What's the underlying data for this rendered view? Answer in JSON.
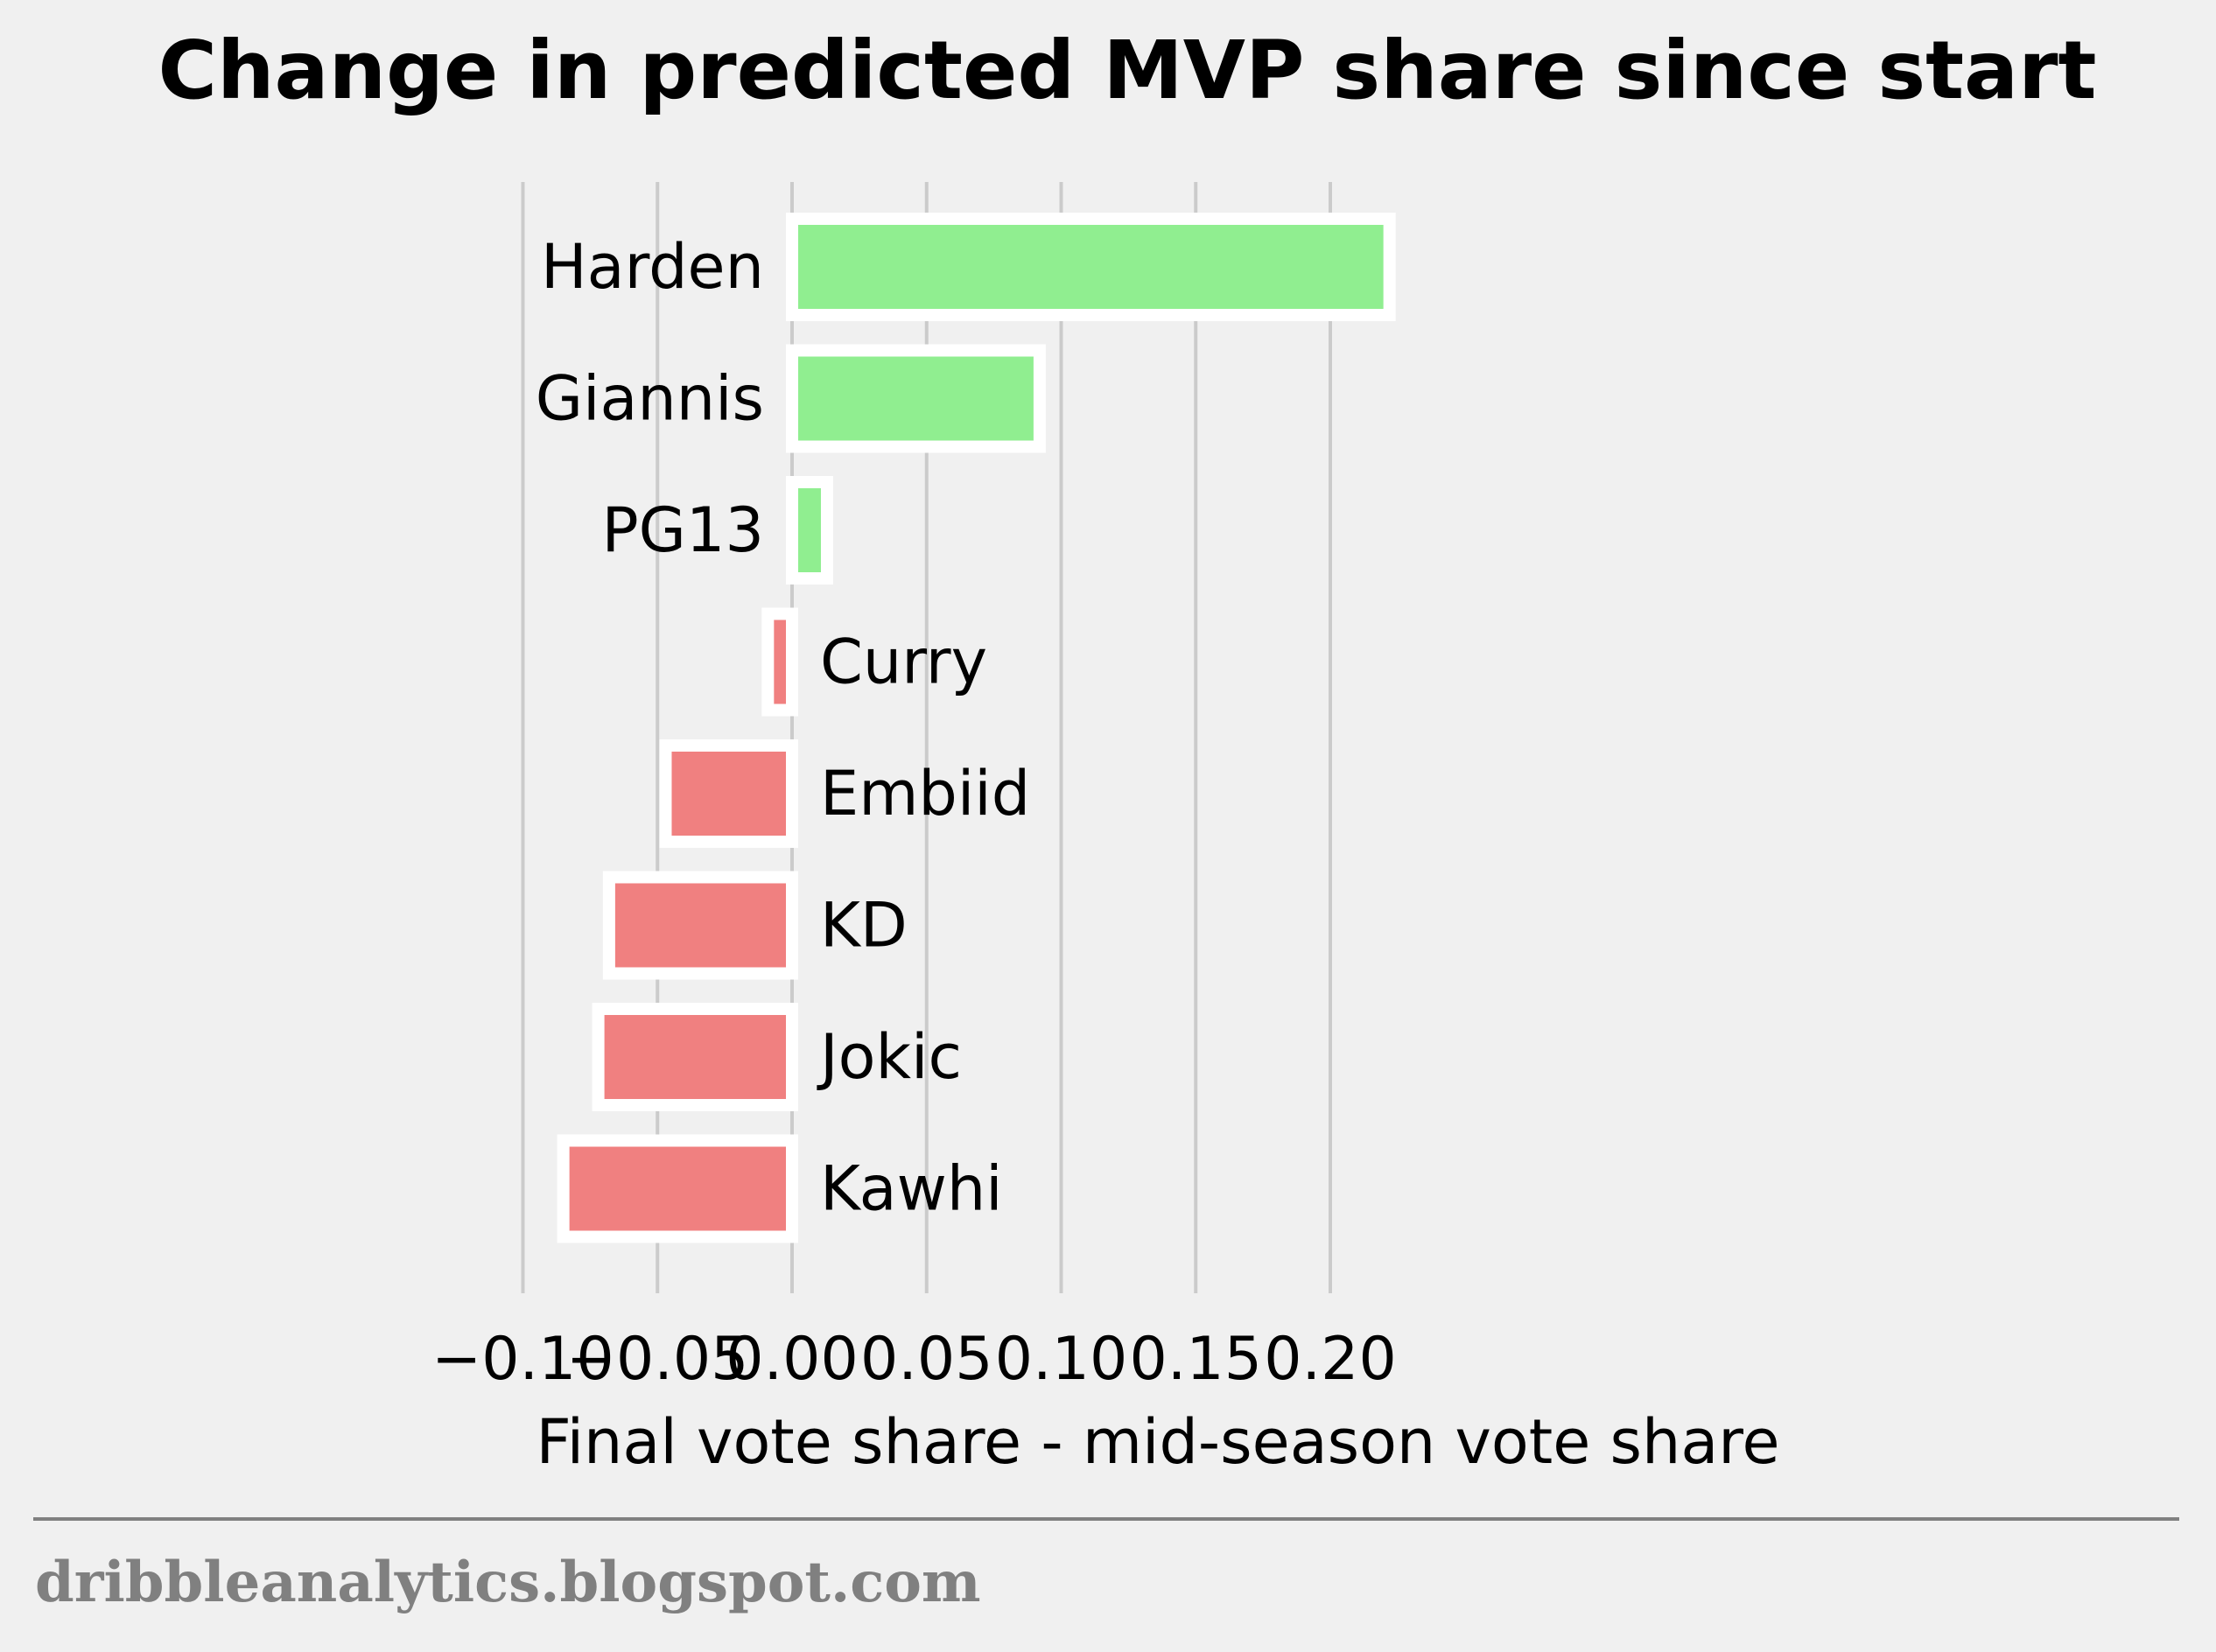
{
  "chart_data": {
    "type": "bar",
    "orientation": "horizontal",
    "title": "Change in predicted MVP share since start",
    "xlabel": "Final vote share - mid-season vote share",
    "ylabel": "",
    "categories": [
      "Harden",
      "Giannis",
      "PG13",
      "Curry",
      "Embiid",
      "KD",
      "Jokic",
      "Kawhi"
    ],
    "values": [
      0.222,
      0.092,
      0.013,
      -0.009,
      -0.047,
      -0.068,
      -0.072,
      -0.085
    ],
    "xlim": [
      -0.105,
      0.23
    ],
    "xticks": [
      -0.1,
      -0.05,
      0.0,
      0.05,
      0.1,
      0.15,
      0.2
    ],
    "xtick_labels": [
      "−0.10",
      "−0.05",
      "0.00",
      "0.05",
      "0.10",
      "0.15",
      "0.20"
    ],
    "grid": "vertical",
    "colors": {
      "positive": "#90ee90",
      "negative": "#f08080",
      "bar_edge": "#ffffff",
      "grid": "#cbcbcb",
      "background": "#f0f0f0",
      "footer_rule": "#808080"
    }
  },
  "footer": {
    "source": "dribbleanalytics.blogspot.com"
  }
}
